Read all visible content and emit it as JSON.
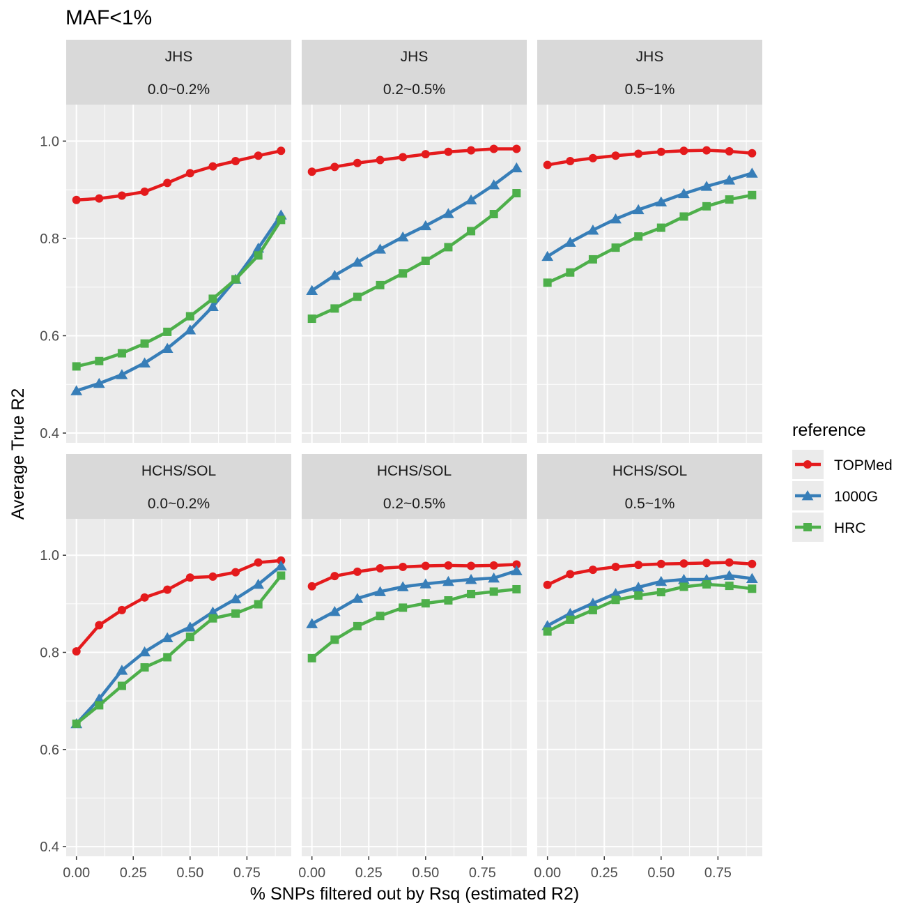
{
  "title": "MAF<1%",
  "xlabel": "% SNPs filtered out by Rsq (estimated R2)",
  "ylabel": "Average True R2",
  "legend": {
    "title": "reference",
    "position": "right"
  },
  "colors": {
    "TOPMed": "#E41A1C",
    "1000G": "#377EB8",
    "HRC": "#4DAF4A",
    "panel_bg": "#EBEBEB",
    "strip_bg": "#D9D9D9",
    "grid": "#FFFFFF"
  },
  "chart_data": {
    "type": "line",
    "layout": "facet-grid",
    "title": "MAF<1%",
    "xlabel": "% SNPs filtered out by Rsq (estimated R2)",
    "ylabel": "Average True R2",
    "xlim": [
      -0.045,
      0.945
    ],
    "ylim": [
      0.38,
      1.075
    ],
    "x_ticks": [
      0.0,
      0.25,
      0.5,
      0.75
    ],
    "x_tick_labels": [
      "0.00",
      "0.25",
      "0.50",
      "0.75"
    ],
    "y_ticks": [
      0.4,
      0.6,
      0.8,
      1.0
    ],
    "y_tick_labels": [
      "0.4",
      "0.6",
      "0.8",
      "1.0"
    ],
    "grid": true,
    "x": [
      0.0,
      0.1,
      0.2,
      0.3,
      0.4,
      0.5,
      0.6,
      0.7,
      0.8,
      0.9
    ],
    "series_names": [
      "TOPMed",
      "1000G",
      "HRC"
    ],
    "series_markers": [
      "circle",
      "triangle",
      "square"
    ],
    "panels": [
      {
        "cohort": "JHS",
        "maf": "0.0~0.2%",
        "series": [
          {
            "name": "TOPMed",
            "values": [
              0.879,
              0.882,
              0.888,
              0.896,
              0.914,
              0.934,
              0.948,
              0.959,
              0.97,
              0.98
            ]
          },
          {
            "name": "1000G",
            "values": [
              0.487,
              0.502,
              0.52,
              0.544,
              0.574,
              0.612,
              0.66,
              0.716,
              0.78,
              0.848
            ]
          },
          {
            "name": "HRC",
            "values": [
              0.537,
              0.548,
              0.564,
              0.584,
              0.608,
              0.64,
              0.676,
              0.716,
              0.765,
              0.838
            ]
          }
        ]
      },
      {
        "cohort": "JHS",
        "maf": "0.2~0.5%",
        "series": [
          {
            "name": "TOPMed",
            "values": [
              0.937,
              0.947,
              0.955,
              0.961,
              0.967,
              0.973,
              0.978,
              0.981,
              0.984,
              0.984
            ]
          },
          {
            "name": "1000G",
            "values": [
              0.693,
              0.724,
              0.751,
              0.778,
              0.803,
              0.826,
              0.851,
              0.879,
              0.91,
              0.945
            ]
          },
          {
            "name": "HRC",
            "values": [
              0.635,
              0.656,
              0.68,
              0.704,
              0.728,
              0.754,
              0.782,
              0.815,
              0.85,
              0.893
            ]
          }
        ]
      },
      {
        "cohort": "JHS",
        "maf": "0.5~1%",
        "series": [
          {
            "name": "TOPMed",
            "values": [
              0.951,
              0.959,
              0.965,
              0.97,
              0.974,
              0.978,
              0.98,
              0.981,
              0.979,
              0.975
            ]
          },
          {
            "name": "1000G",
            "values": [
              0.763,
              0.792,
              0.817,
              0.84,
              0.859,
              0.875,
              0.892,
              0.907,
              0.92,
              0.934
            ]
          },
          {
            "name": "HRC",
            "values": [
              0.709,
              0.73,
              0.757,
              0.781,
              0.804,
              0.822,
              0.845,
              0.866,
              0.88,
              0.889
            ]
          }
        ]
      },
      {
        "cohort": "HCHS/SOL",
        "maf": "0.0~0.2%",
        "series": [
          {
            "name": "TOPMed",
            "values": [
              0.802,
              0.856,
              0.887,
              0.913,
              0.929,
              0.954,
              0.956,
              0.965,
              0.985,
              0.989
            ]
          },
          {
            "name": "1000G",
            "values": [
              0.653,
              0.704,
              0.763,
              0.801,
              0.83,
              0.852,
              0.883,
              0.91,
              0.94,
              0.978
            ]
          },
          {
            "name": "HRC",
            "values": [
              0.653,
              0.691,
              0.731,
              0.769,
              0.79,
              0.832,
              0.87,
              0.88,
              0.899,
              0.958
            ]
          }
        ]
      },
      {
        "cohort": "HCHS/SOL",
        "maf": "0.2~0.5%",
        "series": [
          {
            "name": "TOPMed",
            "values": [
              0.936,
              0.957,
              0.966,
              0.973,
              0.976,
              0.978,
              0.979,
              0.978,
              0.979,
              0.981
            ]
          },
          {
            "name": "1000G",
            "values": [
              0.859,
              0.884,
              0.911,
              0.925,
              0.935,
              0.941,
              0.946,
              0.95,
              0.953,
              0.968
            ]
          },
          {
            "name": "HRC",
            "values": [
              0.788,
              0.826,
              0.854,
              0.875,
              0.892,
              0.901,
              0.907,
              0.92,
              0.925,
              0.93
            ]
          }
        ]
      },
      {
        "cohort": "HCHS/SOL",
        "maf": "0.5~1%",
        "series": [
          {
            "name": "TOPMed",
            "values": [
              0.939,
              0.961,
              0.97,
              0.976,
              0.98,
              0.982,
              0.983,
              0.984,
              0.985,
              0.982
            ]
          },
          {
            "name": "1000G",
            "values": [
              0.855,
              0.88,
              0.901,
              0.921,
              0.934,
              0.946,
              0.95,
              0.95,
              0.958,
              0.952
            ]
          },
          {
            "name": "HRC",
            "values": [
              0.843,
              0.867,
              0.887,
              0.908,
              0.917,
              0.924,
              0.935,
              0.94,
              0.937,
              0.931
            ]
          }
        ]
      }
    ]
  }
}
